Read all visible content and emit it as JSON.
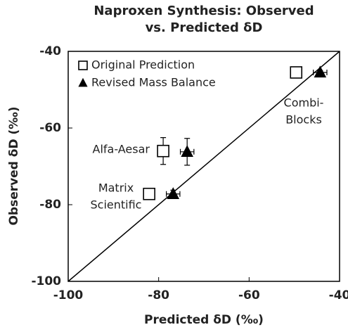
{
  "chart_data": {
    "type": "scatter",
    "title": "Naproxen Synthesis: Observed vs. Predicted δD",
    "x_label": "Predicted δD (‰)",
    "y_label": "Observed δD (‰)",
    "xlim": [
      -100,
      -40
    ],
    "ylim": [
      -100,
      -40
    ],
    "xticks": [
      -100,
      -80,
      -60,
      -40
    ],
    "yticks": [
      -100,
      -80,
      -60,
      -40
    ],
    "identity_line": true,
    "legend": "upper left",
    "series": [
      {
        "name": "Original Prediction",
        "marker": "square",
        "color": "#000000",
        "x": [
          -79,
          -82.1,
          -49.6
        ],
        "y": [
          -66,
          -77.2,
          -45.5
        ],
        "xerr": [
          1,
          1,
          1
        ],
        "yerr": [
          3.5,
          0.7,
          0.5
        ]
      },
      {
        "name": "Revised Mass Balance",
        "marker": "triangle",
        "color": "#000000",
        "x": [
          -73.7,
          -76.8,
          -44.3
        ],
        "y": [
          -66.2,
          -77.2,
          -45.5
        ],
        "xerr": [
          1.5,
          1.5,
          1.5
        ],
        "yerr": [
          3.5,
          1,
          0.5
        ]
      }
    ],
    "annotations": [
      [
        "Alfa-Aesar"
      ],
      [
        "Matrix",
        "Scientific"
      ],
      [
        "Combi-",
        "Blocks"
      ]
    ]
  }
}
